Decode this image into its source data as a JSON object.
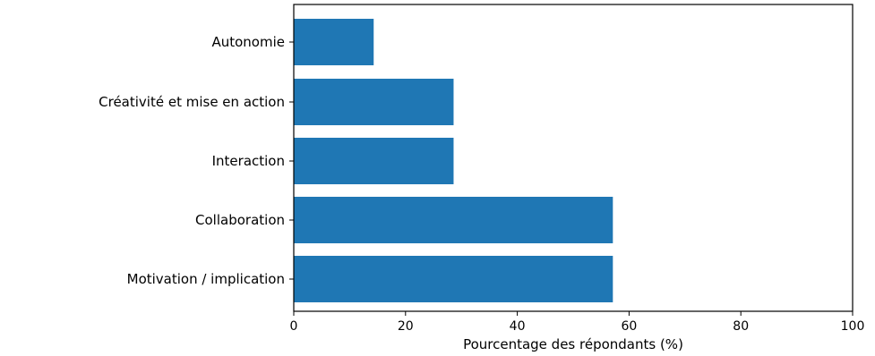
{
  "chart_data": {
    "type": "bar",
    "orientation": "horizontal",
    "categories": [
      "Autonomie",
      "Créativité et mise en action",
      "Interaction",
      "Collaboration",
      "Motivation / implication"
    ],
    "values": [
      14.3,
      28.6,
      28.6,
      57.1,
      57.1
    ],
    "xlabel": "Pourcentage des répondants (%)",
    "xlim": [
      0,
      100
    ],
    "xticks": [
      "0",
      "20",
      "40",
      "60",
      "80",
      "100"
    ],
    "bar_color": "#1f77b4",
    "grid": false
  }
}
